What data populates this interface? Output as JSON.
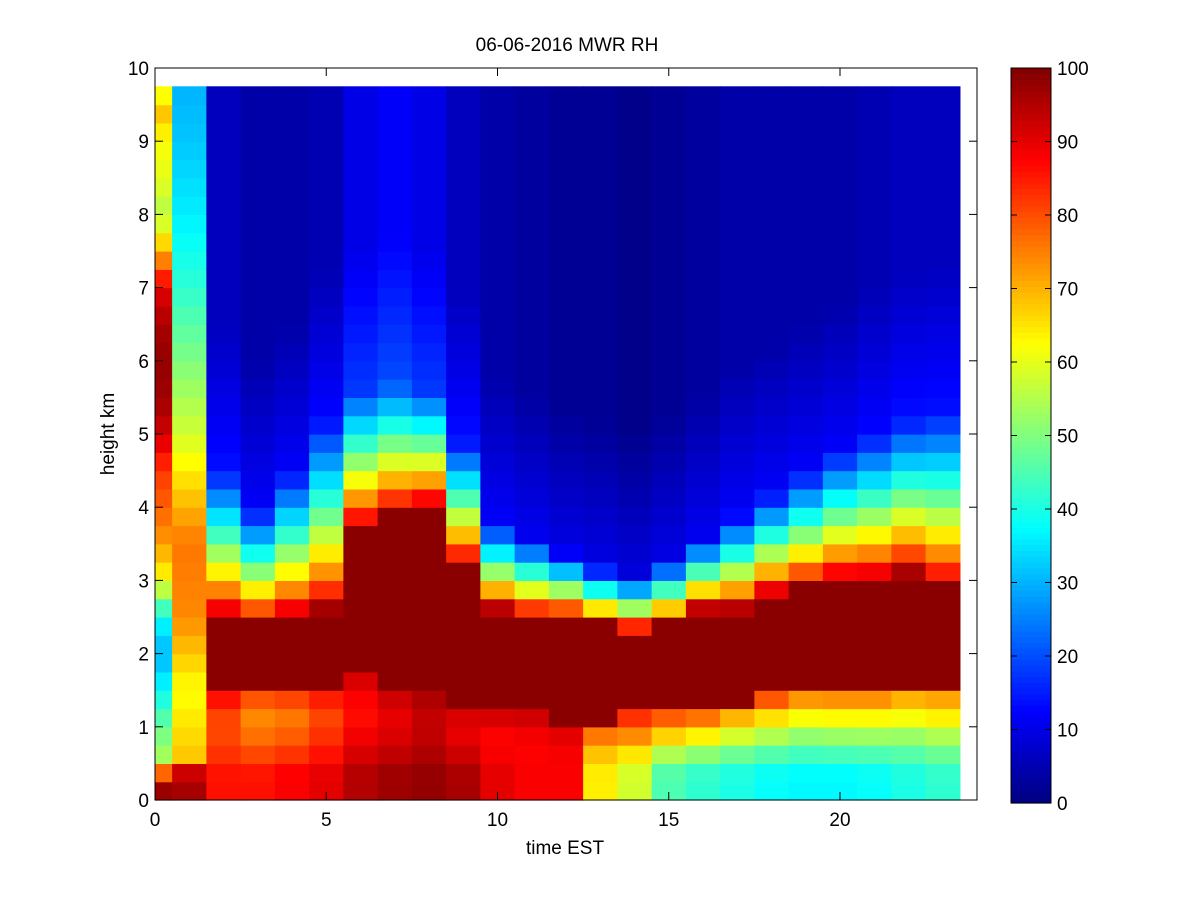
{
  "chart_data": {
    "type": "heatmap",
    "title": "06-06-2016 MWR RH",
    "xlabel": "time EST",
    "ylabel": "height km",
    "xlim": [
      0,
      24
    ],
    "ylim": [
      0,
      10
    ],
    "xticks": [
      0,
      5,
      10,
      15,
      20
    ],
    "yticks": [
      0,
      1,
      2,
      3,
      4,
      5,
      6,
      7,
      8,
      9,
      10
    ],
    "colorbar": {
      "min": 0,
      "max": 100,
      "ticks": [
        0,
        10,
        20,
        30,
        40,
        50,
        60,
        70,
        80,
        90,
        100
      ],
      "colormap": "jet"
    },
    "time_step_hours": 1,
    "data_top_km": 9.75,
    "first_columns": [
      {
        "time": 0,
        "height_km": [
          0,
          0.2,
          0.35,
          0.5,
          1,
          1.5,
          2,
          2.5,
          3,
          3.5,
          4,
          4.5,
          5,
          5.5,
          6,
          6.5,
          7,
          7.5,
          8,
          8.5,
          9,
          9.5,
          9.75
        ],
        "rh": [
          98,
          97,
          82,
          55,
          48,
          38,
          30,
          38,
          62,
          72,
          78,
          82,
          92,
          97,
          98,
          96,
          90,
          70,
          55,
          60,
          62,
          70,
          55
        ]
      },
      {
        "time": 1,
        "height_km": [
          0,
          0.4,
          0.6,
          1.5,
          2.5,
          3.5,
          4.5,
          5,
          6,
          7,
          8,
          9,
          9.75
        ],
        "rh": [
          98,
          92,
          68,
          62,
          74,
          76,
          64,
          58,
          50,
          42,
          36,
          32,
          30
        ]
      }
    ],
    "profiles": [
      {
        "time": 2,
        "rh_surface": 86,
        "rh_low_min": 77,
        "rh_top": 6,
        "cloud_base_km": 1.5,
        "cloud_top_km": 2.5,
        "moist_top_km": 4.5
      },
      {
        "time": 3,
        "rh_surface": 86,
        "rh_low_min": 70,
        "rh_top": 4,
        "cloud_base_km": 1.6,
        "cloud_top_km": 2.4,
        "moist_top_km": 4.0
      },
      {
        "time": 4,
        "rh_surface": 88,
        "rh_low_min": 72,
        "rh_top": 4,
        "cloud_base_km": 1.6,
        "cloud_top_km": 2.5,
        "moist_top_km": 4.5
      },
      {
        "time": 5,
        "rh_surface": 90,
        "rh_low_min": 78,
        "rh_top": 5,
        "cloud_base_km": 1.6,
        "cloud_top_km": 2.6,
        "moist_top_km": 5.2
      },
      {
        "time": 6,
        "rh_surface": 95,
        "rh_low_min": 84,
        "rh_top": 10,
        "cloud_base_km": 1.7,
        "cloud_top_km": 3.7,
        "moist_top_km": 5.6
      },
      {
        "time": 7,
        "rh_surface": 97,
        "rh_low_min": 88,
        "rh_top": 12,
        "cloud_base_km": 1.5,
        "cloud_top_km": 3.9,
        "moist_top_km": 5.7
      },
      {
        "time": 8,
        "rh_surface": 98,
        "rh_low_min": 92,
        "rh_top": 10,
        "cloud_base_km": 1.4,
        "cloud_top_km": 4.0,
        "moist_top_km": 5.6
      },
      {
        "time": 9,
        "rh_surface": 96,
        "rh_low_min": 88,
        "rh_top": 6,
        "cloud_base_km": 1.3,
        "cloud_top_km": 3.2,
        "moist_top_km": 4.9
      },
      {
        "time": 10,
        "rh_surface": 90,
        "rh_low_min": 86,
        "rh_top": 4,
        "cloud_base_km": 1.2,
        "cloud_top_km": 2.6,
        "moist_top_km": 3.8
      },
      {
        "time": 11,
        "rh_surface": 88,
        "rh_low_min": 87,
        "rh_top": 3,
        "cloud_base_km": 1.2,
        "cloud_top_km": 2.5,
        "moist_top_km": 3.6
      },
      {
        "time": 12,
        "rh_surface": 88,
        "rh_low_min": 88,
        "rh_top": 2,
        "cloud_base_km": 1.1,
        "cloud_top_km": 2.5,
        "moist_top_km": 3.4
      },
      {
        "time": 13,
        "rh_surface": 64,
        "rh_low_min": 70,
        "rh_top": 2,
        "cloud_base_km": 1.1,
        "cloud_top_km": 2.4,
        "moist_top_km": 3.2
      },
      {
        "time": 14,
        "rh_surface": 58,
        "rh_low_min": 70,
        "rh_top": 1,
        "cloud_base_km": 1.2,
        "cloud_top_km": 2.3,
        "moist_top_km": 3.1
      },
      {
        "time": 15,
        "rh_surface": 45,
        "rh_low_min": 62,
        "rh_top": 2,
        "cloud_base_km": 1.2,
        "cloud_top_km": 2.4,
        "moist_top_km": 3.3
      },
      {
        "time": 16,
        "rh_surface": 42,
        "rh_low_min": 58,
        "rh_top": 3,
        "cloud_base_km": 1.2,
        "cloud_top_km": 2.6,
        "moist_top_km": 3.6
      },
      {
        "time": 17,
        "rh_surface": 40,
        "rh_low_min": 56,
        "rh_top": 4,
        "cloud_base_km": 1.3,
        "cloud_top_km": 2.6,
        "moist_top_km": 3.9
      },
      {
        "time": 18,
        "rh_surface": 38,
        "rh_low_min": 55,
        "rh_top": 4,
        "cloud_base_km": 1.4,
        "cloud_top_km": 2.8,
        "moist_top_km": 4.2
      },
      {
        "time": 19,
        "rh_surface": 37,
        "rh_low_min": 54,
        "rh_top": 4,
        "cloud_base_km": 1.5,
        "cloud_top_km": 2.9,
        "moist_top_km": 4.5
      },
      {
        "time": 20,
        "rh_surface": 37,
        "rh_low_min": 55,
        "rh_top": 4,
        "cloud_base_km": 1.5,
        "cloud_top_km": 3.0,
        "moist_top_km": 4.8
      },
      {
        "time": 21,
        "rh_surface": 38,
        "rh_low_min": 55,
        "rh_top": 5,
        "cloud_base_km": 1.5,
        "cloud_top_km": 3.0,
        "moist_top_km": 5.0
      },
      {
        "time": 22,
        "rh_surface": 40,
        "rh_low_min": 56,
        "rh_top": 6,
        "cloud_base_km": 1.6,
        "cloud_top_km": 3.1,
        "moist_top_km": 5.2
      },
      {
        "time": 23,
        "rh_surface": 42,
        "rh_low_min": 58,
        "rh_top": 6,
        "cloud_base_km": 1.6,
        "cloud_top_km": 2.9,
        "moist_top_km": 5.3
      }
    ]
  }
}
